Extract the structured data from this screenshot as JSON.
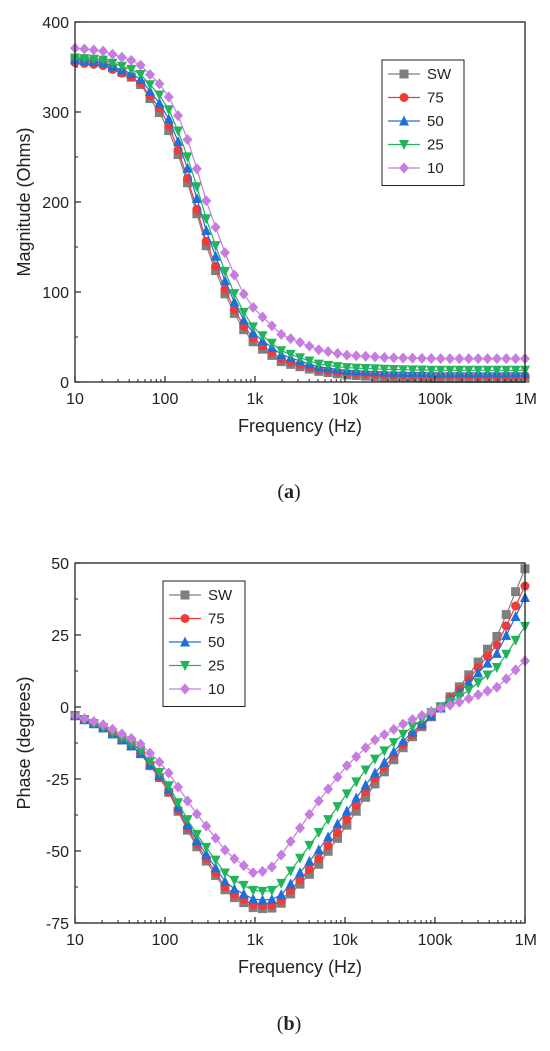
{
  "panel_labels": {
    "a_prefix": "(",
    "a": "a",
    "a_suffix": ")",
    "b_prefix": "(",
    "b": "b",
    "b_suffix": ")"
  },
  "chart_data": [
    {
      "id": "a",
      "type": "line",
      "xscale": "log",
      "xlim": [
        10,
        1000000
      ],
      "ylim": [
        0,
        400
      ],
      "xlabel": "Frequency (Hz)",
      "ylabel": "Magnitude (Ohms)",
      "x_ticks": [
        10,
        100,
        1000,
        10000,
        100000,
        1000000
      ],
      "x_tick_labels": [
        "10",
        "100",
        "1k",
        "10k",
        "100k",
        "1M"
      ],
      "y_ticks": [
        0,
        100,
        200,
        300,
        400
      ],
      "y_tick_labels": [
        "0",
        "100",
        "200",
        "300",
        "400"
      ],
      "legend_position": "top-right",
      "grid": false,
      "series": [
        {
          "name": "SW",
          "color": "#7f7f7f",
          "marker": "square",
          "x": [
            10,
            20,
            50,
            100,
            150,
            200,
            300,
            500,
            700,
            1000,
            2000,
            5000,
            10000,
            30000,
            100000,
            300000,
            1000000
          ],
          "values": [
            358,
            355,
            335,
            290,
            245,
            205,
            145,
            90,
            62,
            42,
            22,
            12,
            8,
            5,
            4,
            4,
            4
          ]
        },
        {
          "name": "75",
          "color": "#f03b3b",
          "marker": "circle",
          "x": [
            10,
            20,
            50,
            100,
            150,
            200,
            300,
            500,
            700,
            1000,
            2000,
            5000,
            10000,
            30000,
            100000,
            300000,
            1000000
          ],
          "values": [
            355,
            352,
            336,
            296,
            250,
            210,
            150,
            95,
            66,
            46,
            25,
            14,
            10,
            8,
            7,
            7,
            7
          ]
        },
        {
          "name": "50",
          "color": "#1f6fd6",
          "marker": "triangle-up",
          "x": [
            10,
            20,
            50,
            100,
            150,
            200,
            300,
            500,
            700,
            1000,
            2000,
            5000,
            10000,
            30000,
            100000,
            300000,
            1000000
          ],
          "values": [
            358,
            355,
            340,
            302,
            260,
            222,
            162,
            104,
            73,
            52,
            30,
            17,
            13,
            11,
            10,
            10,
            10
          ]
        },
        {
          "name": "25",
          "color": "#21b45a",
          "marker": "triangle-down",
          "x": [
            10,
            20,
            50,
            100,
            150,
            200,
            300,
            500,
            700,
            1000,
            2000,
            5000,
            10000,
            30000,
            100000,
            300000,
            1000000
          ],
          "values": [
            360,
            358,
            345,
            312,
            272,
            235,
            175,
            114,
            82,
            58,
            34,
            20,
            16,
            14,
            13,
            13,
            13
          ]
        },
        {
          "name": "10",
          "color": "#c77de0",
          "marker": "diamond",
          "x": [
            10,
            20,
            50,
            100,
            150,
            200,
            300,
            500,
            700,
            1000,
            2000,
            5000,
            10000,
            30000,
            100000,
            300000,
            1000000
          ],
          "values": [
            371,
            368,
            355,
            325,
            290,
            255,
            195,
            135,
            102,
            80,
            52,
            36,
            30,
            27,
            26,
            26,
            26
          ]
        }
      ]
    },
    {
      "id": "b",
      "type": "line",
      "xscale": "log",
      "xlim": [
        10,
        1000000
      ],
      "ylim": [
        -75,
        50
      ],
      "xlabel": "Frequency (Hz)",
      "ylabel": "Phase (degrees)",
      "x_ticks": [
        10,
        100,
        1000,
        10000,
        100000,
        1000000
      ],
      "x_tick_labels": [
        "10",
        "100",
        "1k",
        "10k",
        "100k",
        "1M"
      ],
      "y_ticks": [
        -75,
        -50,
        -25,
        0,
        25,
        50
      ],
      "y_tick_labels": [
        "-75",
        "-50",
        "-25",
        "0",
        "25",
        "50"
      ],
      "legend_position": "top-left",
      "grid": false,
      "series": [
        {
          "name": "SW",
          "color": "#7f7f7f",
          "marker": "square",
          "x": [
            10,
            20,
            50,
            100,
            200,
            500,
            1000,
            1500,
            2000,
            5000,
            10000,
            20000,
            50000,
            100000,
            200000,
            500000,
            1000000
          ],
          "values": [
            -3,
            -7,
            -15,
            -27,
            -46,
            -65,
            -70,
            -70,
            -68,
            -55,
            -42,
            -28,
            -12,
            -2,
            8,
            25,
            48
          ]
        },
        {
          "name": "75",
          "color": "#f03b3b",
          "marker": "circle",
          "x": [
            10,
            20,
            50,
            100,
            200,
            500,
            1000,
            1500,
            2000,
            5000,
            10000,
            20000,
            50000,
            100000,
            200000,
            500000,
            1000000
          ],
          "values": [
            -3,
            -7,
            -15,
            -27,
            -45,
            -64,
            -69,
            -69,
            -67,
            -53,
            -40,
            -26,
            -11,
            -2,
            7,
            22,
            42
          ]
        },
        {
          "name": "50",
          "color": "#1f6fd6",
          "marker": "triangle-up",
          "x": [
            10,
            20,
            50,
            100,
            200,
            500,
            1000,
            1500,
            2000,
            5000,
            10000,
            20000,
            50000,
            100000,
            200000,
            500000,
            1000000
          ],
          "values": [
            -3,
            -7,
            -15,
            -26,
            -44,
            -62,
            -67,
            -67,
            -65,
            -50,
            -37,
            -24,
            -10,
            -2,
            6,
            19,
            38
          ]
        },
        {
          "name": "25",
          "color": "#21b45a",
          "marker": "triangle-down",
          "x": [
            10,
            20,
            50,
            100,
            200,
            500,
            1000,
            1500,
            2000,
            5000,
            10000,
            20000,
            50000,
            100000,
            200000,
            500000,
            1000000
          ],
          "values": [
            -3,
            -7,
            -14,
            -25,
            -42,
            -59,
            -64,
            -64,
            -61,
            -44,
            -31,
            -19,
            -8,
            -1,
            4,
            14,
            28
          ]
        },
        {
          "name": "10",
          "color": "#c77de0",
          "marker": "diamond",
          "x": [
            10,
            20,
            50,
            100,
            200,
            500,
            1000,
            1500,
            2000,
            5000,
            10000,
            20000,
            50000,
            100000,
            200000,
            500000,
            1000000
          ],
          "values": [
            -3,
            -6,
            -12,
            -21,
            -35,
            -51,
            -58,
            -56,
            -51,
            -33,
            -21,
            -12,
            -5,
            -1,
            2,
            7,
            16
          ]
        }
      ]
    }
  ]
}
